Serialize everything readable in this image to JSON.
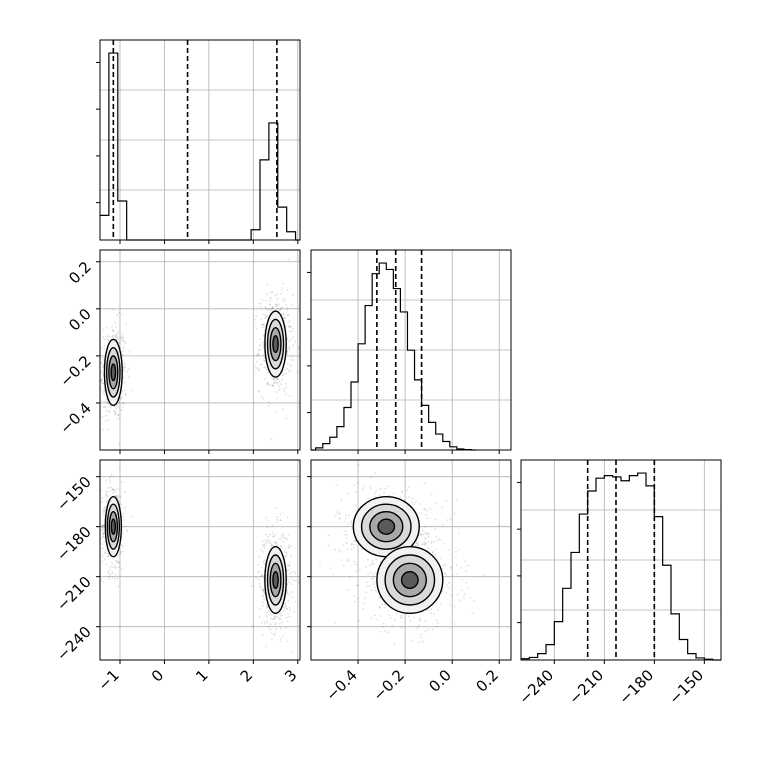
{
  "chart_data": {
    "type": "corner",
    "parameters": [
      {
        "range": [
          -1.45,
          3.05
        ],
        "ticks": [
          -1,
          0,
          1,
          2,
          3
        ],
        "tick_labels": [
          "−1",
          "0",
          "1",
          "2",
          "3"
        ],
        "quantiles": [
          -1.15,
          0.52,
          2.53
        ]
      },
      {
        "range": [
          -0.6,
          0.25
        ],
        "ticks": [
          -0.4,
          -0.2,
          0.0,
          0.2
        ],
        "tick_labels": [
          "−0.4",
          "−0.2",
          "0.0",
          "0.2"
        ],
        "quantiles": [
          -0.32,
          -0.24,
          -0.13
        ]
      },
      {
        "range": [
          -260,
          -140
        ],
        "ticks": [
          -240,
          -210,
          -180,
          -150
        ],
        "tick_labels": [
          "−240",
          "−210",
          "−180",
          "−150"
        ],
        "quantiles": [
          -220,
          -203,
          -180
        ]
      }
    ],
    "marginals": [
      {
        "edges": [
          -1.45,
          -1.25,
          -1.05,
          -0.85,
          -0.65,
          1.75,
          1.95,
          2.15,
          2.35,
          2.55,
          2.75,
          2.95,
          3.05
        ],
        "counts": [
          120,
          910,
          190,
          0,
          0,
          0,
          50,
          390,
          570,
          160,
          40,
          0
        ]
      },
      {
        "edges": [
          -0.6,
          -0.58,
          -0.55,
          -0.52,
          -0.49,
          -0.46,
          -0.43,
          -0.4,
          -0.37,
          -0.34,
          -0.31,
          -0.28,
          -0.25,
          -0.22,
          -0.19,
          -0.16,
          -0.13,
          -0.1,
          -0.07,
          -0.04,
          -0.01,
          0.02,
          0.05,
          0.08,
          0.1
        ],
        "counts": [
          0,
          10,
          30,
          60,
          110,
          200,
          320,
          500,
          680,
          830,
          880,
          850,
          760,
          650,
          470,
          330,
          210,
          130,
          75,
          40,
          15,
          5,
          2,
          0
        ]
      },
      {
        "edges": [
          -260,
          -255,
          -250,
          -245,
          -240,
          -235,
          -230,
          -225,
          -220,
          -215,
          -210,
          -205,
          -200,
          -195,
          -190,
          -185,
          -180,
          -175,
          -170,
          -165,
          -160,
          -155,
          -150,
          -145,
          -140
        ],
        "counts": [
          5,
          10,
          25,
          60,
          150,
          280,
          420,
          570,
          660,
          710,
          720,
          715,
          700,
          720,
          730,
          680,
          560,
          370,
          180,
          80,
          25,
          8,
          3,
          0
        ]
      }
    ],
    "joint_modes": [
      {
        "pair": [
          0,
          1
        ],
        "modes": [
          {
            "center": [
              -1.15,
              -0.27
            ],
            "spread": [
              0.1,
              0.07
            ],
            "weight": 0.45
          },
          {
            "center": [
              2.5,
              -0.15
            ],
            "spread": [
              0.12,
              0.07
            ],
            "weight": 0.55
          }
        ]
      },
      {
        "pair": [
          0,
          2
        ],
        "modes": [
          {
            "center": [
              -1.15,
              -180
            ],
            "spread": [
              0.09,
              9
            ],
            "weight": 0.45
          },
          {
            "center": [
              2.5,
              -212
            ],
            "spread": [
              0.12,
              10
            ],
            "weight": 0.55
          }
        ]
      },
      {
        "pair": [
          1,
          2
        ],
        "modes": [
          {
            "center": [
              -0.28,
              -180
            ],
            "spread": [
              0.07,
              9
            ],
            "weight": 0.45
          },
          {
            "center": [
              -0.18,
              -212
            ],
            "spread": [
              0.07,
              10
            ],
            "weight": 0.55
          }
        ]
      }
    ],
    "grid": true
  }
}
